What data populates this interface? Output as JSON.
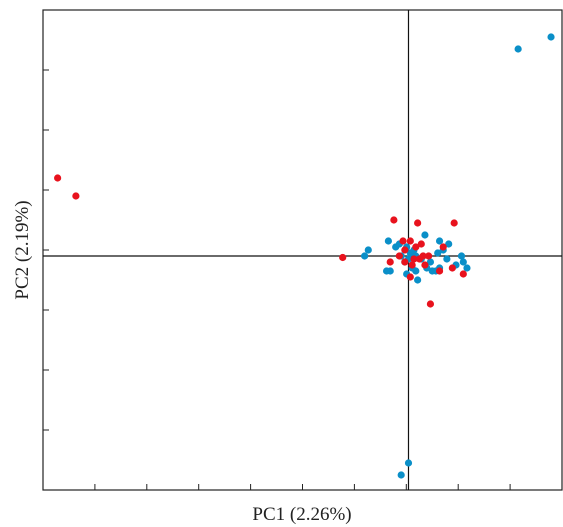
{
  "chart_data": {
    "type": "scatter",
    "xlabel": "PC1 (2.26%)",
    "ylabel": "PC2 (2.19%)",
    "xlim": [
      -1.0,
      0.42
    ],
    "ylim": [
      -0.78,
      0.82
    ],
    "grid": false,
    "zero_lines": true,
    "series": [
      {
        "color": "#0a8fc8",
        "points": [
          [
            0.3,
            0.69
          ],
          [
            0.39,
            0.73
          ],
          [
            -0.02,
            -0.73
          ],
          [
            0.0,
            -0.69
          ],
          [
            -0.11,
            0.02
          ],
          [
            -0.12,
            0.0
          ],
          [
            -0.055,
            0.05
          ],
          [
            -0.05,
            -0.05
          ],
          [
            -0.06,
            -0.05
          ],
          [
            -0.035,
            0.03
          ],
          [
            -0.025,
            0.04
          ],
          [
            -0.02,
            0.0
          ],
          [
            -0.01,
            -0.02
          ],
          [
            -0.005,
            0.03
          ],
          [
            0.0,
            -0.01
          ],
          [
            0.005,
            0.01
          ],
          [
            0.01,
            -0.04
          ],
          [
            0.015,
            0.02
          ],
          [
            0.02,
            0.0
          ],
          [
            0.02,
            -0.05
          ],
          [
            0.035,
            -0.01
          ],
          [
            0.045,
            0.07
          ],
          [
            0.05,
            -0.04
          ],
          [
            0.06,
            -0.02
          ],
          [
            0.075,
            -0.05
          ],
          [
            0.08,
            0.01
          ],
          [
            0.085,
            -0.04
          ],
          [
            0.095,
            0.02
          ],
          [
            0.085,
            0.05
          ],
          [
            0.11,
            0.04
          ],
          [
            0.105,
            -0.01
          ],
          [
            0.13,
            -0.03
          ],
          [
            0.145,
            0.0
          ],
          [
            0.15,
            -0.02
          ],
          [
            0.16,
            -0.04
          ],
          [
            -0.005,
            -0.06
          ],
          [
            0.025,
            -0.08
          ],
          [
            0.065,
            -0.05
          ]
        ]
      },
      {
        "color": "#e8121d",
        "points": [
          [
            -0.96,
            0.26
          ],
          [
            -0.91,
            0.2
          ],
          [
            -0.18,
            -0.005
          ],
          [
            -0.04,
            0.12
          ],
          [
            -0.015,
            0.05
          ],
          [
            -0.05,
            -0.02
          ],
          [
            -0.025,
            0.0
          ],
          [
            -0.01,
            -0.02
          ],
          [
            0.005,
            0.05
          ],
          [
            0.01,
            -0.03
          ],
          [
            0.015,
            -0.01
          ],
          [
            0.02,
            0.03
          ],
          [
            0.025,
            0.11
          ],
          [
            0.03,
            -0.01
          ],
          [
            0.035,
            0.04
          ],
          [
            0.045,
            -0.03
          ],
          [
            0.055,
            0.0
          ],
          [
            0.06,
            -0.16
          ],
          [
            0.085,
            -0.05
          ],
          [
            0.095,
            0.03
          ],
          [
            0.125,
            0.11
          ],
          [
            0.12,
            -0.04
          ],
          [
            0.15,
            -0.06
          ],
          [
            0.005,
            -0.07
          ],
          [
            -0.01,
            0.02
          ],
          [
            0.04,
            0.0
          ]
        ]
      }
    ]
  }
}
